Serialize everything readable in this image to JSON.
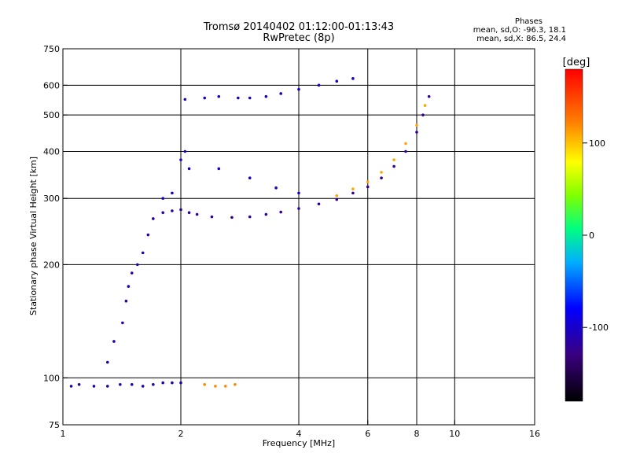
{
  "header": {
    "title": "Tromsø 20140402 01:12:00-01:13:43",
    "subtitle": "RwPretec (8p)",
    "stats_title": "Phases",
    "stats_line1": "mean, sd,O: -96.3, 18.1",
    "stats_line2": "mean, sd,X:  86.5, 24.4"
  },
  "chart_data": {
    "type": "scatter",
    "title": "Tromsø 20140402 01:12:00-01:13:43",
    "subtitle": "RwPretec (8p)",
    "xlabel": "Frequency [MHz]",
    "ylabel": "Stationary phase Virtual Height [km]",
    "xscale": "log",
    "yscale": "log",
    "xlim": [
      1,
      16
    ],
    "ylim": [
      75,
      750
    ],
    "xticks": [
      1,
      2,
      4,
      6,
      8,
      10,
      16
    ],
    "yticks": [
      75,
      100,
      200,
      300,
      400,
      500,
      600,
      750
    ],
    "xgrid": [
      2,
      4,
      6,
      8,
      10
    ],
    "ygrid": [
      100,
      200,
      300,
      400,
      500,
      600
    ],
    "colorbar": {
      "label": "[deg]",
      "range": [
        -180,
        180
      ],
      "ticks": [
        100,
        0,
        -100
      ]
    },
    "series": [
      {
        "phase": -110,
        "points": [
          [
            1.05,
            95
          ],
          [
            1.1,
            96
          ],
          [
            1.2,
            95
          ],
          [
            1.3,
            95
          ],
          [
            1.4,
            96
          ],
          [
            1.5,
            96
          ],
          [
            1.6,
            95
          ],
          [
            1.7,
            96
          ],
          [
            1.8,
            97
          ],
          [
            1.9,
            97
          ],
          [
            2.0,
            97
          ]
        ]
      },
      {
        "phase": 120,
        "points": [
          [
            2.3,
            96
          ],
          [
            2.45,
            95
          ],
          [
            2.6,
            95
          ],
          [
            2.75,
            96
          ]
        ]
      },
      {
        "phase": -115,
        "points": [
          [
            1.3,
            110
          ],
          [
            1.35,
            125
          ],
          [
            1.42,
            140
          ],
          [
            1.45,
            160
          ],
          [
            1.47,
            175
          ],
          [
            1.5,
            190
          ],
          [
            1.55,
            200
          ],
          [
            1.6,
            215
          ],
          [
            1.65,
            240
          ],
          [
            1.7,
            265
          ],
          [
            1.8,
            275
          ],
          [
            1.9,
            278
          ],
          [
            2.0,
            280
          ],
          [
            2.1,
            275
          ]
        ]
      },
      {
        "phase": -120,
        "points": [
          [
            2.2,
            272
          ],
          [
            2.4,
            268
          ],
          [
            2.7,
            267
          ],
          [
            3.0,
            268
          ],
          [
            3.3,
            272
          ],
          [
            3.6,
            276
          ],
          [
            4.0,
            282
          ],
          [
            4.5,
            290
          ],
          [
            5.0,
            298
          ],
          [
            5.5,
            310
          ],
          [
            6.0,
            322
          ],
          [
            6.5,
            340
          ],
          [
            7.0,
            365
          ],
          [
            7.5,
            400
          ],
          [
            8.0,
            450
          ],
          [
            8.3,
            500
          ],
          [
            8.6,
            560
          ]
        ]
      },
      {
        "phase": 110,
        "points": [
          [
            5.0,
            305
          ],
          [
            5.5,
            318
          ],
          [
            6.0,
            332
          ],
          [
            6.5,
            352
          ],
          [
            7.0,
            380
          ],
          [
            7.5,
            420
          ],
          [
            8.0,
            470
          ],
          [
            8.4,
            530
          ]
        ]
      },
      {
        "phase": -100,
        "points": [
          [
            1.8,
            300
          ],
          [
            1.9,
            310
          ],
          [
            2.0,
            380
          ],
          [
            2.05,
            400
          ],
          [
            2.1,
            360
          ],
          [
            2.5,
            360
          ],
          [
            3.0,
            340
          ],
          [
            3.5,
            320
          ],
          [
            4.0,
            310
          ]
        ]
      },
      {
        "phase": -105,
        "points": [
          [
            2.05,
            550
          ],
          [
            2.3,
            555
          ],
          [
            2.5,
            560
          ],
          [
            2.8,
            555
          ],
          [
            3.0,
            555
          ],
          [
            3.3,
            560
          ],
          [
            3.6,
            570
          ],
          [
            4.0,
            585
          ],
          [
            4.5,
            600
          ],
          [
            5.0,
            615
          ],
          [
            5.5,
            625
          ]
        ]
      }
    ]
  }
}
